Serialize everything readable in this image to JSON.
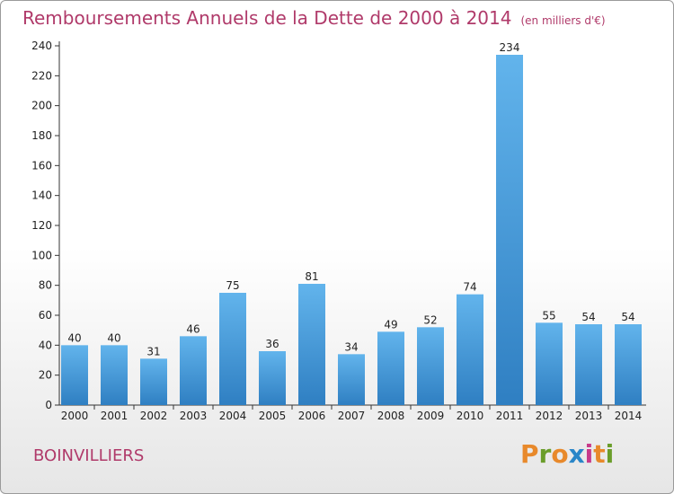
{
  "header": {
    "title": "Remboursements Annuels de la Dette de 2000 à 2014",
    "unit": "(en milliers d'€)"
  },
  "footer": {
    "place": "BOINVILLIERS",
    "brand": "Proxiti"
  },
  "colors": {
    "title": "#b03a6a",
    "bar_top": "#62b4ec",
    "bar_bottom": "#2f7fc2",
    "axis": "#333333",
    "grid": "#cccccc",
    "logo_letters": [
      "#e8892b",
      "#6a9d2a",
      "#e8892b",
      "#2a86c8",
      "#c83a8a",
      "#e8892b",
      "#6a9d2a"
    ]
  },
  "chart_data": {
    "type": "bar",
    "title": "Remboursements Annuels de la Dette de 2000 à 2014",
    "subtitle": "(en milliers d'€)",
    "categories": [
      "2000",
      "2001",
      "2002",
      "2003",
      "2004",
      "2005",
      "2006",
      "2007",
      "2008",
      "2009",
      "2010",
      "2011",
      "2012",
      "2013",
      "2014"
    ],
    "values": [
      40,
      40,
      31,
      46,
      75,
      36,
      81,
      34,
      49,
      52,
      74,
      234,
      55,
      54,
      54
    ],
    "ylim": [
      0,
      240
    ],
    "yticks": [
      0,
      20,
      40,
      60,
      80,
      100,
      120,
      140,
      160,
      180,
      200,
      220,
      240
    ],
    "grid": false,
    "data_labels": true
  }
}
